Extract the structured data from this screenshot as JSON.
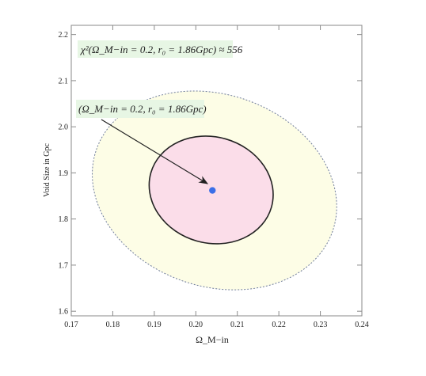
{
  "chart_data": {
    "type": "scatter",
    "title": "",
    "xlabel": "Ω_M−in",
    "ylabel": "Void Size in Gpc",
    "xlim": [
      0.17,
      0.24
    ],
    "ylim": [
      1.59,
      2.22
    ],
    "x_ticks": [
      "0.17",
      "0.18",
      "0.19",
      "0.20",
      "0.21",
      "0.22",
      "0.23",
      "0.24"
    ],
    "y_ticks": [
      "1.6",
      "1.7",
      "1.8",
      "1.9",
      "2.0",
      "2.1",
      "2.2"
    ],
    "best_fit": {
      "x": 0.204,
      "y": 1.862
    },
    "contours": [
      {
        "name": "inner",
        "fill": "#fbdde9",
        "stroke": "#222222",
        "dashed": false,
        "center": [
          0.2037,
          1.863
        ],
        "rx": 0.0151,
        "ry": 0.115,
        "rotate": -16
      },
      {
        "name": "outer",
        "fill": "#fdfde6",
        "stroke": "#6f7c9a",
        "dashed": true,
        "center": [
          0.2045,
          1.862
        ],
        "rx": 0.0301,
        "ry": 0.208,
        "rotate": -19
      }
    ],
    "grid": false,
    "annotations": {
      "chi2_label": "χ²(Ω_M−in = 0.2, r₀ = 1.86Gpc) ≈ 556",
      "point_label": "(Ω_M−in = 0.2, r₀ = 1.86Gpc)"
    }
  },
  "colors": {
    "frame": "#8a8a8a",
    "point": "#3b6fe8",
    "label_box": "#e7f6e4"
  }
}
